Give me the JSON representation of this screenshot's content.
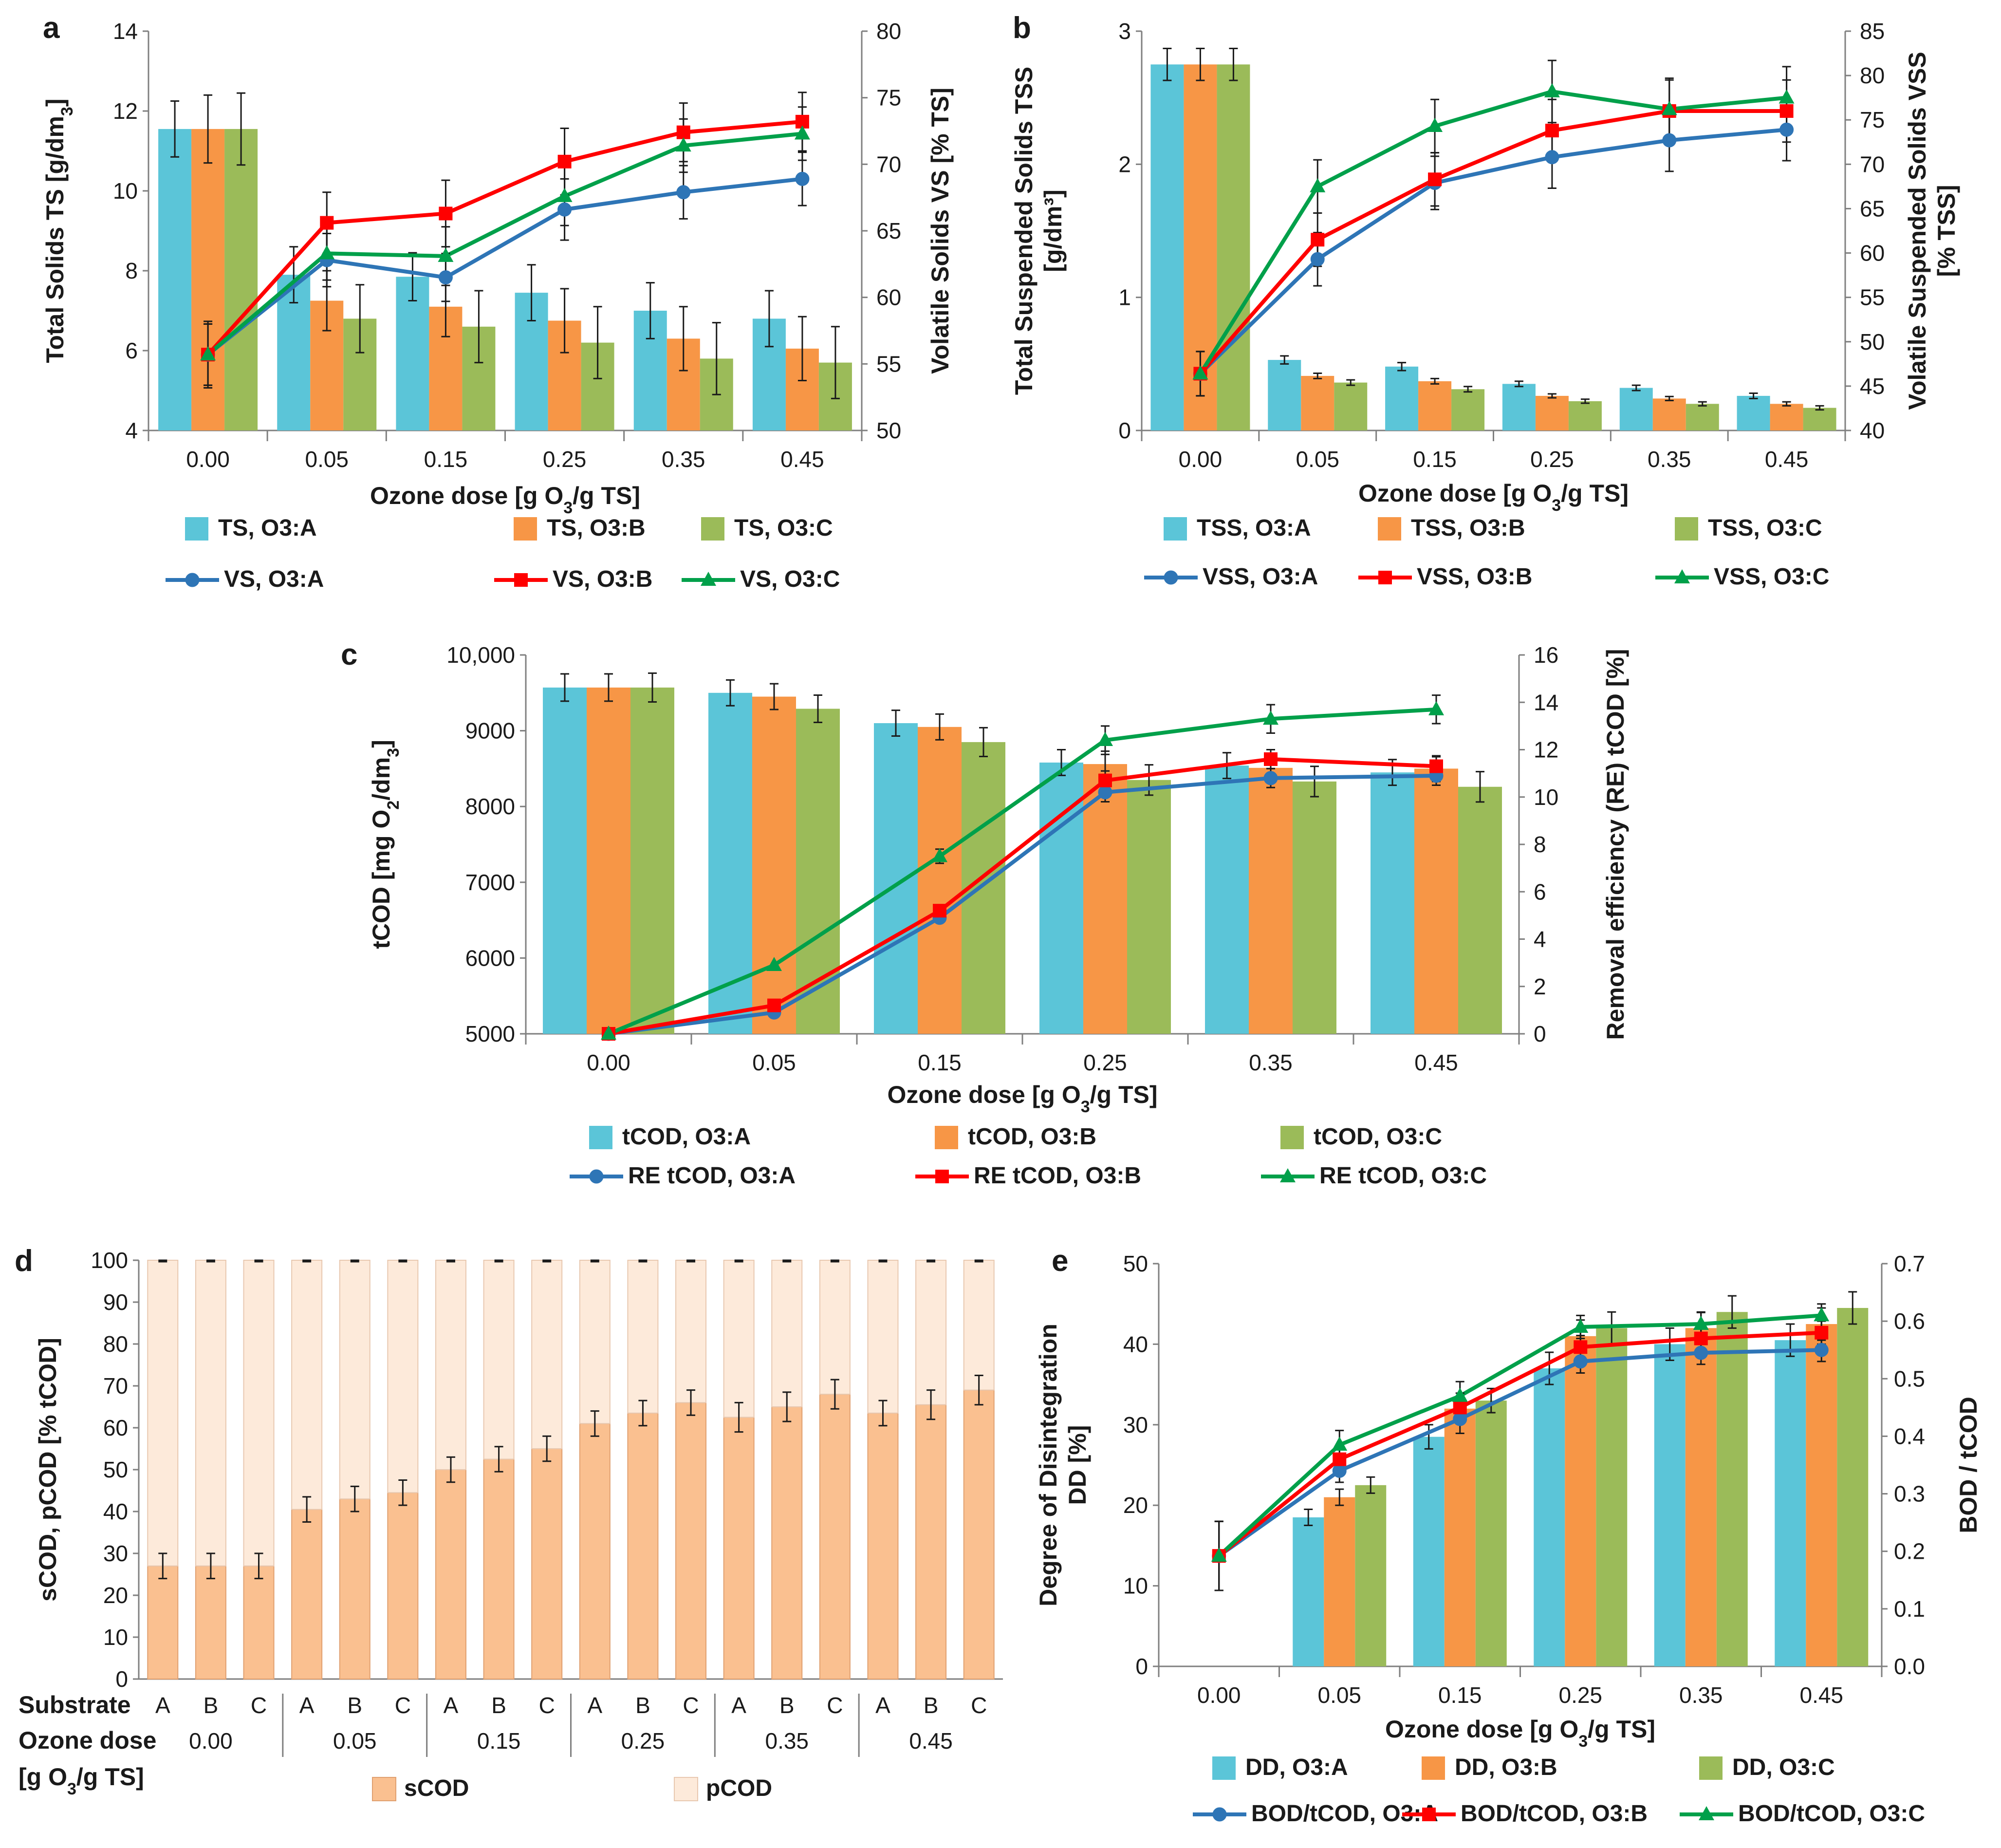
{
  "colors": {
    "A": "#5bc5d8",
    "B": "#f79646",
    "C": "#9bbb59",
    "lineA": "#2e75b6",
    "lineB": "#ff0000",
    "lineC": "#00a04a",
    "sCOD": "#fac090",
    "pCOD": "#fdeada",
    "axis": "#7f7f7f",
    "err": "#1a1a1a"
  },
  "chart_data": [
    {
      "id": "a",
      "type": "bar",
      "panel_label": "a",
      "categories": [
        "0.00",
        "0.05",
        "0.15",
        "0.25",
        "0.35",
        "0.45"
      ],
      "xlabel_parts": [
        "Ozone dose [g O",
        "3",
        "/g TS]"
      ],
      "ylabel_parts": [
        "Total Solids TS [g/dm",
        "3",
        "]"
      ],
      "y2label": "Volatile Solids VS [% TS]",
      "ylim": [
        4,
        14
      ],
      "yticks": [
        "4",
        "6",
        "8",
        "10",
        "12",
        "14"
      ],
      "y2lim": [
        50,
        80
      ],
      "y2ticks": [
        "50",
        "55",
        "60",
        "65",
        "70",
        "75",
        "80"
      ],
      "bar_series": [
        {
          "name": "TS, O3:A",
          "values": [
            11.55,
            7.9,
            7.85,
            7.45,
            7.0,
            6.8
          ],
          "errors": [
            0.7,
            0.7,
            0.6,
            0.7,
            0.7,
            0.7
          ]
        },
        {
          "name": "TS, O3:B",
          "values": [
            11.55,
            7.25,
            7.1,
            6.75,
            6.3,
            6.05
          ],
          "errors": [
            0.85,
            0.75,
            0.75,
            0.8,
            0.8,
            0.8
          ]
        },
        {
          "name": "TS, O3:C",
          "values": [
            11.55,
            6.8,
            6.6,
            6.2,
            5.8,
            5.7
          ],
          "errors": [
            0.9,
            0.85,
            0.9,
            0.9,
            0.9,
            0.9
          ]
        }
      ],
      "line_series": [
        {
          "name": "VS, O3:A",
          "marker": "circle",
          "values": [
            55.7,
            62.8,
            61.5,
            66.6,
            67.9,
            68.9
          ],
          "errors": [
            2.3,
            2.0,
            1.8,
            2.3,
            2.0,
            2.0
          ]
        },
        {
          "name": "VS, O3:B",
          "marker": "square",
          "values": [
            55.7,
            65.6,
            66.3,
            70.2,
            72.4,
            73.2
          ],
          "errors": [
            2.5,
            2.3,
            2.5,
            2.5,
            2.2,
            2.2
          ]
        },
        {
          "name": "VS, O3:C",
          "marker": "triangle",
          "values": [
            55.7,
            63.3,
            63.1,
            67.6,
            71.4,
            72.3
          ],
          "errors": [
            2.3,
            2.0,
            2.2,
            2.2,
            2.0,
            2.0
          ]
        }
      ]
    },
    {
      "id": "b",
      "type": "bar",
      "panel_label": "b",
      "categories": [
        "0.00",
        "0.05",
        "0.15",
        "0.25",
        "0.35",
        "0.45"
      ],
      "xlabel_parts": [
        "Ozone dose [g O",
        "3",
        "/g TS]"
      ],
      "ylabel_lines": [
        "Total Suspended Solids TSS",
        "[g/dm³]"
      ],
      "y2label_lines": [
        "Volatile Suspended Solids VSS",
        "[% TSS]"
      ],
      "ylim": [
        0,
        3
      ],
      "yticks": [
        "0",
        "1",
        "2",
        "3"
      ],
      "y2lim": [
        40,
        85
      ],
      "y2ticks": [
        "40",
        "45",
        "50",
        "55",
        "60",
        "65",
        "70",
        "75",
        "80",
        "85"
      ],
      "bar_series": [
        {
          "name": "TSS, O3:A",
          "values": [
            2.75,
            0.53,
            0.48,
            0.35,
            0.32,
            0.26
          ],
          "errors": [
            0.12,
            0.03,
            0.03,
            0.02,
            0.02,
            0.02
          ]
        },
        {
          "name": "TSS, O3:B",
          "values": [
            2.75,
            0.41,
            0.37,
            0.26,
            0.24,
            0.2
          ],
          "errors": [
            0.12,
            0.02,
            0.02,
            0.015,
            0.015,
            0.015
          ]
        },
        {
          "name": "TSS, O3:C",
          "values": [
            2.75,
            0.36,
            0.31,
            0.22,
            0.2,
            0.17
          ],
          "errors": [
            0.12,
            0.02,
            0.02,
            0.015,
            0.015,
            0.015
          ]
        }
      ],
      "line_series": [
        {
          "name": "VSS, O3:A",
          "marker": "circle",
          "values": [
            46.4,
            59.3,
            67.9,
            70.8,
            72.7,
            73.9
          ],
          "errors": [
            2.5,
            3.0,
            3.0,
            3.5,
            3.5,
            3.5
          ]
        },
        {
          "name": "VSS, O3:B",
          "marker": "square",
          "values": [
            46.4,
            61.5,
            68.3,
            73.8,
            76.0,
            76.0
          ],
          "errors": [
            2.5,
            3.0,
            3.0,
            3.5,
            3.5,
            3.5
          ]
        },
        {
          "name": "VSS, O3:C",
          "marker": "triangle",
          "values": [
            46.4,
            67.5,
            74.3,
            78.2,
            76.2,
            77.5
          ],
          "errors": [
            2.5,
            3.0,
            3.0,
            3.5,
            3.5,
            3.5
          ]
        }
      ]
    },
    {
      "id": "c",
      "type": "bar",
      "panel_label": "c",
      "categories": [
        "0.00",
        "0.05",
        "0.15",
        "0.25",
        "0.35",
        "0.45"
      ],
      "xlabel_parts": [
        "Ozone dose [g O",
        "3",
        "/g TS]"
      ],
      "ylabel_parts": [
        "tCOD [mg O",
        "2",
        "/dm",
        "3",
        "]"
      ],
      "y2label": "Removal efficiency (RE) tCOD [%]",
      "ylim": [
        5000,
        10000
      ],
      "yticks": [
        "5000",
        "6000",
        "7000",
        "8000",
        "9000",
        "10,000"
      ],
      "y2lim": [
        0,
        16
      ],
      "y2ticks": [
        "0",
        "2",
        "4",
        "6",
        "8",
        "10",
        "12",
        "14",
        "16"
      ],
      "bar_series": [
        {
          "name": "tCOD, O3:A",
          "values": [
            9570,
            9500,
            9100,
            8580,
            8540,
            8450
          ],
          "errors": [
            180,
            170,
            170,
            170,
            170,
            170
          ]
        },
        {
          "name": "tCOD, O3:B",
          "values": [
            9570,
            9450,
            9050,
            8560,
            8510,
            8500
          ],
          "errors": [
            180,
            170,
            170,
            170,
            170,
            170
          ]
        },
        {
          "name": "tCOD, O3:C",
          "values": [
            9570,
            9290,
            8850,
            8350,
            8330,
            8260
          ],
          "errors": [
            190,
            180,
            190,
            200,
            200,
            200
          ]
        }
      ],
      "line_series": [
        {
          "name": "RE tCOD, O3:A",
          "marker": "circle",
          "values": [
            0,
            0.9,
            4.9,
            10.2,
            10.8,
            10.9
          ],
          "errors": [
            0,
            0,
            0,
            0.4,
            0.4,
            0.4
          ]
        },
        {
          "name": "RE tCOD, O3:B",
          "marker": "square",
          "values": [
            0,
            1.2,
            5.2,
            10.7,
            11.6,
            11.3
          ],
          "errors": [
            0,
            0,
            0,
            0.4,
            0.4,
            0.4
          ]
        },
        {
          "name": "RE tCOD, O3:C",
          "marker": "triangle",
          "values": [
            0,
            2.9,
            7.5,
            12.4,
            13.3,
            13.7
          ],
          "errors": [
            0,
            0,
            0.3,
            0.6,
            0.6,
            0.6
          ]
        }
      ]
    },
    {
      "id": "d",
      "type": "bar",
      "stacked": true,
      "panel_label": "d",
      "ylabel": "sCOD, pCOD [% tCOD]",
      "ylim": [
        0,
        100
      ],
      "yticks": [
        "0",
        "10",
        "20",
        "30",
        "40",
        "50",
        "60",
        "70",
        "80",
        "90",
        "100"
      ],
      "row_label_substrate": "Substrate",
      "row_label_dose": "Ozone dose",
      "row_label_unit_parts": [
        "[g O",
        "3",
        "/g TS]"
      ],
      "substrates": [
        "A",
        "B",
        "C",
        "A",
        "B",
        "C",
        "A",
        "B",
        "C",
        "A",
        "B",
        "C",
        "A",
        "B",
        "C",
        "A",
        "B",
        "C"
      ],
      "dose_groups": [
        "0.00",
        "0.05",
        "0.15",
        "0.25",
        "0.35",
        "0.45"
      ],
      "series": [
        {
          "name": "sCOD",
          "values": [
            27,
            27,
            27,
            40.5,
            43,
            44.5,
            50,
            52.5,
            55,
            61,
            63.5,
            66,
            62.5,
            65,
            68,
            63.5,
            65.5,
            69
          ],
          "errors": [
            3,
            3,
            3,
            3,
            3,
            3,
            3,
            3,
            3,
            3,
            3,
            3,
            3.5,
            3.5,
            3.5,
            3,
            3.5,
            3.5
          ]
        },
        {
          "name": "pCOD",
          "values": [
            73,
            73,
            73,
            59.5,
            57,
            55.5,
            50,
            47.5,
            45,
            39,
            36.5,
            34,
            37.5,
            35,
            32,
            36.5,
            34.5,
            31
          ]
        }
      ]
    },
    {
      "id": "e",
      "type": "bar",
      "panel_label": "e",
      "categories": [
        "0.00",
        "0.05",
        "0.15",
        "0.25",
        "0.35",
        "0.45"
      ],
      "xlabel_parts": [
        "Ozone dose [g O",
        "3",
        "/g TS]"
      ],
      "ylabel_lines": [
        "Degree of Disintegration",
        "DD [%]"
      ],
      "y2label": "BOD / tCOD",
      "ylim": [
        0,
        50
      ],
      "yticks": [
        "0",
        "10",
        "20",
        "30",
        "40",
        "50"
      ],
      "y2lim": [
        0,
        0.7
      ],
      "y2ticks": [
        "0.0",
        "0.1",
        "0.2",
        "0.3",
        "0.4",
        "0.5",
        "0.6",
        "0.7"
      ],
      "bar_series": [
        {
          "name": "DD, O3:A",
          "values": [
            0,
            18.5,
            28.5,
            37,
            40,
            40.5
          ],
          "errors": [
            0,
            1,
            1.5,
            2,
            2,
            2
          ]
        },
        {
          "name": "DD, O3:B",
          "values": [
            0,
            21,
            32,
            41,
            42,
            42.5
          ],
          "errors": [
            0,
            1,
            1.5,
            2,
            2,
            2
          ]
        },
        {
          "name": "DD, O3:C",
          "values": [
            0,
            22.5,
            33,
            42,
            44,
            44.5
          ],
          "errors": [
            0,
            1,
            1.5,
            2,
            2,
            2
          ]
        }
      ],
      "line_series": [
        {
          "name": "BOD/tCOD, O3:A",
          "marker": "circle",
          "values": [
            0.192,
            0.34,
            0.43,
            0.53,
            0.545,
            0.55
          ],
          "errors": [
            0.06,
            0.02,
            0.025,
            0.02,
            0.02,
            0.02
          ]
        },
        {
          "name": "BOD/tCOD, O3:B",
          "marker": "square",
          "values": [
            0.192,
            0.36,
            0.45,
            0.555,
            0.57,
            0.58
          ],
          "errors": [
            0.06,
            0.02,
            0.025,
            0.02,
            0.02,
            0.02
          ]
        },
        {
          "name": "BOD/tCOD, O3:C",
          "marker": "triangle",
          "values": [
            0.192,
            0.385,
            0.47,
            0.59,
            0.595,
            0.61
          ],
          "errors": [
            0.06,
            0.025,
            0.025,
            0.02,
            0.02,
            0.02
          ]
        }
      ]
    }
  ]
}
